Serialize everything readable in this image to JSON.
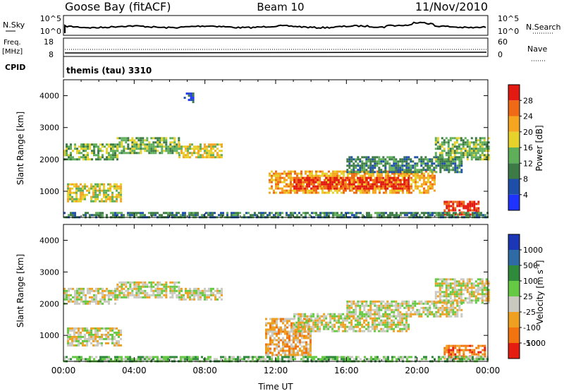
{
  "header": {
    "station": "Goose Bay (fitACF)",
    "beam": "Beam 10",
    "date": "11/Nov/2010"
  },
  "status_panels": {
    "nsky_label": "N.Sky",
    "nsearch_label": "N.Search",
    "noise_ticks": [
      "10^5",
      "10^0"
    ],
    "freq_label_1": "Freq.",
    "freq_label_2": "[MHz]",
    "freq_ticks": [
      "18",
      "8"
    ],
    "nave_label": "Nave",
    "nave_ticks": [
      "60",
      "0"
    ],
    "cpid_label": "CPID",
    "cpid_value": "themis (tau) 3310"
  },
  "chart_data": [
    {
      "type": "heatmap",
      "name": "power",
      "xlabel": "",
      "ylabel": "Slant Range [km]",
      "xlim": [
        0,
        24
      ],
      "ylim": [
        180,
        4500
      ],
      "y_ticks": [
        "1000",
        "2000",
        "3000",
        "4000"
      ],
      "colorbar": {
        "label": "Power [dB]",
        "ticks": [
          "4",
          "8",
          "12",
          "16",
          "20",
          "24",
          "28"
        ],
        "colors": [
          "#1e33ff",
          "#1e4fa8",
          "#3c7a46",
          "#5fae5a",
          "#e6d22a",
          "#f5a51f",
          "#ef6a16",
          "#e21a12"
        ]
      },
      "echo_regions": [
        {
          "t_start": 0.0,
          "t_end": 3.0,
          "r_low": 2000,
          "r_high": 2500,
          "level": 3
        },
        {
          "t_start": 3.0,
          "t_end": 6.5,
          "r_low": 2200,
          "r_high": 2700,
          "level": 3
        },
        {
          "t_start": 6.5,
          "t_end": 9.0,
          "r_low": 2100,
          "r_high": 2500,
          "level": 4
        },
        {
          "t_start": 0.2,
          "t_end": 3.2,
          "r_low": 700,
          "r_high": 1250,
          "level": 4
        },
        {
          "t_start": 11.6,
          "t_end": 21.0,
          "r_low": 950,
          "r_high": 1650,
          "level": 5
        },
        {
          "t_start": 13.0,
          "t_end": 19.5,
          "r_low": 1100,
          "r_high": 1450,
          "level": 7
        },
        {
          "t_start": 16.0,
          "t_end": 22.5,
          "r_low": 1600,
          "r_high": 2100,
          "level": 2
        },
        {
          "t_start": 21.0,
          "t_end": 24.0,
          "r_low": 2000,
          "r_high": 2700,
          "level": 3
        },
        {
          "t_start": 21.5,
          "t_end": 23.5,
          "r_low": 250,
          "r_high": 700,
          "level": 7
        },
        {
          "t_start": 6.8,
          "t_end": 7.3,
          "r_low": 3800,
          "r_high": 4100,
          "level": 1
        },
        {
          "t_start": 0.0,
          "t_end": 24.0,
          "r_low": 190,
          "r_high": 350,
          "level": 2
        }
      ]
    },
    {
      "type": "heatmap",
      "name": "velocity",
      "xlabel": "Time UT",
      "ylabel": "Slant Range [km]",
      "xlim": [
        0,
        24
      ],
      "ylim": [
        180,
        4500
      ],
      "x_ticks": [
        "00:00",
        "04:00",
        "08:00",
        "12:00",
        "16:00",
        "20:00",
        "00:00"
      ],
      "y_ticks": [
        "1000",
        "2000",
        "3000",
        "4000"
      ],
      "colorbar": {
        "label": "Velocity [m s",
        "label_sup": "-1",
        "label_end": "]",
        "ticks": [
          "1000",
          "500",
          "100",
          "25",
          "-25",
          "-100",
          "-500",
          "-1000"
        ],
        "colors": [
          "#1c37b5",
          "#2e6aa3",
          "#2f8a3c",
          "#66c944",
          "#c9c9c0",
          "#f0a020",
          "#f27410",
          "#e51d10"
        ]
      },
      "echo_regions": [
        {
          "t_start": 0.0,
          "t_end": 3.0,
          "r_low": 2000,
          "r_high": 2500,
          "level": 4
        },
        {
          "t_start": 3.0,
          "t_end": 6.5,
          "r_low": 2200,
          "r_high": 2700,
          "level": 4
        },
        {
          "t_start": 6.5,
          "t_end": 9.0,
          "r_low": 2100,
          "r_high": 2500,
          "level": 4
        },
        {
          "t_start": 0.2,
          "t_end": 3.2,
          "r_low": 700,
          "r_high": 1250,
          "level": 4
        },
        {
          "t_start": 11.4,
          "t_end": 14.0,
          "r_low": 350,
          "r_high": 1550,
          "level": 5
        },
        {
          "t_start": 13.0,
          "t_end": 19.5,
          "r_low": 1100,
          "r_high": 1700,
          "level": 4
        },
        {
          "t_start": 16.0,
          "t_end": 22.5,
          "r_low": 1600,
          "r_high": 2100,
          "level": 4
        },
        {
          "t_start": 21.0,
          "t_end": 24.0,
          "r_low": 2000,
          "r_high": 2800,
          "level": 4
        },
        {
          "t_start": 21.5,
          "t_end": 23.8,
          "r_low": 250,
          "r_high": 700,
          "level": 6
        },
        {
          "t_start": 0.0,
          "t_end": 24.0,
          "r_low": 190,
          "r_high": 350,
          "level": 3
        }
      ]
    }
  ]
}
